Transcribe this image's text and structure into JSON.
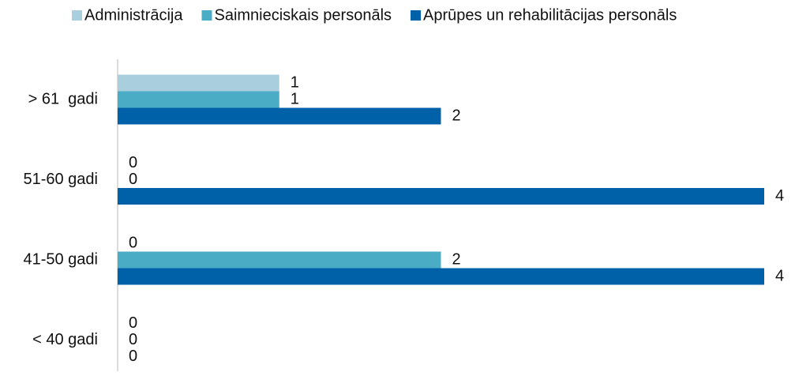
{
  "chart_data": {
    "type": "bar",
    "orientation": "horizontal",
    "categories": [
      "> 61  gadi",
      "51-60 gadi",
      "41-50 gadi",
      "< 40 gadi"
    ],
    "series": [
      {
        "name": "Administrācija",
        "color": "#a9cfdf",
        "values": [
          1,
          0,
          0,
          0
        ]
      },
      {
        "name": "Saimnieciskais personāls",
        "color": "#4bacc6",
        "values": [
          1,
          0,
          2,
          0
        ]
      },
      {
        "name": "Aprūpes un rehabilitācijas personāls",
        "color": "#0060a8",
        "values": [
          2,
          4,
          4,
          0
        ]
      }
    ],
    "legend": "top"
  }
}
